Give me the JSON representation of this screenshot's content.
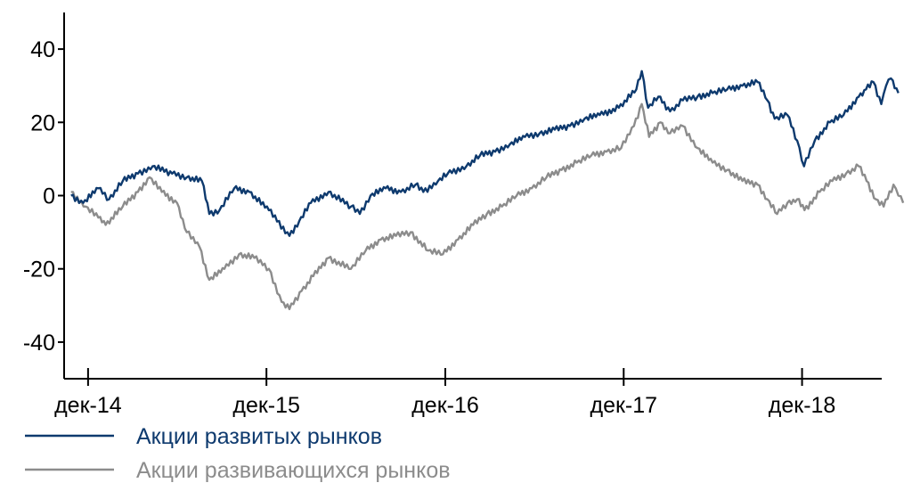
{
  "chart_data": {
    "type": "line",
    "title": "",
    "xlabel": "",
    "ylabel": "",
    "x_ticks": [
      "дек-14",
      "дек-15",
      "дек-16",
      "дек-17",
      "дек-18"
    ],
    "x_range": [
      "2014-11",
      "2019-06"
    ],
    "ylim": [
      -50,
      50
    ],
    "y_ticks": [
      40,
      20,
      0,
      -20,
      -40
    ],
    "grid": false,
    "legend_position": "bottom-left",
    "series": [
      {
        "name": "Акции развитых рынков",
        "color": "#0e3a6e",
        "points": [
          [
            "2014-11-15",
            0
          ],
          [
            "2014-12-10",
            -2
          ],
          [
            "2015-01-10",
            2
          ],
          [
            "2015-02-01",
            -1
          ],
          [
            "2015-03-01",
            4
          ],
          [
            "2015-04-01",
            6
          ],
          [
            "2015-05-01",
            8
          ],
          [
            "2015-06-10",
            6
          ],
          [
            "2015-07-10",
            5
          ],
          [
            "2015-08-10",
            4
          ],
          [
            "2015-08-25",
            -5
          ],
          [
            "2015-09-15",
            -4
          ],
          [
            "2015-10-15",
            2
          ],
          [
            "2015-11-15",
            1
          ],
          [
            "2015-12-25",
            -4
          ],
          [
            "2016-02-05",
            -11
          ],
          [
            "2016-02-25",
            -7
          ],
          [
            "2016-03-20",
            -2
          ],
          [
            "2016-04-25",
            1
          ],
          [
            "2016-06-10",
            -3
          ],
          [
            "2016-06-28",
            -5
          ],
          [
            "2016-07-20",
            0
          ],
          [
            "2016-08-20",
            2
          ],
          [
            "2016-09-20",
            1
          ],
          [
            "2016-10-20",
            3
          ],
          [
            "2016-11-05",
            1
          ],
          [
            "2016-12-05",
            4
          ],
          [
            "2016-12-25",
            6
          ],
          [
            "2017-02-01",
            8
          ],
          [
            "2017-03-01",
            11
          ],
          [
            "2017-04-01",
            12
          ],
          [
            "2017-05-01",
            14
          ],
          [
            "2017-06-01",
            16
          ],
          [
            "2017-07-01",
            17
          ],
          [
            "2017-08-01",
            18
          ],
          [
            "2017-09-01",
            19
          ],
          [
            "2017-10-01",
            21
          ],
          [
            "2017-11-01",
            22
          ],
          [
            "2017-12-10",
            24
          ],
          [
            "2018-01-15",
            29
          ],
          [
            "2018-01-26",
            34
          ],
          [
            "2018-02-08",
            24
          ],
          [
            "2018-03-01",
            27
          ],
          [
            "2018-03-25",
            23
          ],
          [
            "2018-04-20",
            26
          ],
          [
            "2018-05-20",
            27
          ],
          [
            "2018-06-20",
            28
          ],
          [
            "2018-07-20",
            29
          ],
          [
            "2018-08-20",
            30
          ],
          [
            "2018-09-20",
            31
          ],
          [
            "2018-10-10",
            26
          ],
          [
            "2018-10-25",
            21
          ],
          [
            "2018-11-20",
            22
          ],
          [
            "2018-12-10",
            15
          ],
          [
            "2018-12-24",
            8
          ],
          [
            "2019-01-15",
            15
          ],
          [
            "2019-02-15",
            20
          ],
          [
            "2019-03-15",
            22
          ],
          [
            "2019-04-15",
            27
          ],
          [
            "2019-04-30",
            29
          ],
          [
            "2019-05-15",
            31
          ],
          [
            "2019-05-31",
            25
          ],
          [
            "2019-06-10",
            30
          ],
          [
            "2019-06-20",
            32
          ],
          [
            "2019-07-05",
            28
          ]
        ]
      },
      {
        "name": "Акции развивающихся рынков",
        "color": "#8c8c8c",
        "points": [
          [
            "2014-11-15",
            1
          ],
          [
            "2014-12-15",
            -3
          ],
          [
            "2015-01-10",
            -6
          ],
          [
            "2015-01-25",
            -8
          ],
          [
            "2015-03-01",
            -3
          ],
          [
            "2015-04-01",
            1
          ],
          [
            "2015-04-25",
            5
          ],
          [
            "2015-05-20",
            1
          ],
          [
            "2015-06-20",
            -2
          ],
          [
            "2015-07-10",
            -10
          ],
          [
            "2015-08-05",
            -14
          ],
          [
            "2015-08-25",
            -23
          ],
          [
            "2015-09-25",
            -20
          ],
          [
            "2015-10-25",
            -16
          ],
          [
            "2015-11-25",
            -17
          ],
          [
            "2015-12-25",
            -20
          ],
          [
            "2016-01-20",
            -29
          ],
          [
            "2016-02-05",
            -31
          ],
          [
            "2016-03-01",
            -26
          ],
          [
            "2016-03-25",
            -22
          ],
          [
            "2016-04-25",
            -17
          ],
          [
            "2016-06-10",
            -20
          ],
          [
            "2016-07-10",
            -15
          ],
          [
            "2016-08-10",
            -12
          ],
          [
            "2016-09-10",
            -11
          ],
          [
            "2016-10-10",
            -10
          ],
          [
            "2016-11-15",
            -15
          ],
          [
            "2016-12-15",
            -16
          ],
          [
            "2017-01-15",
            -12
          ],
          [
            "2017-02-15",
            -8
          ],
          [
            "2017-03-15",
            -5
          ],
          [
            "2017-04-15",
            -3
          ],
          [
            "2017-05-15",
            0
          ],
          [
            "2017-06-15",
            2
          ],
          [
            "2017-07-15",
            5
          ],
          [
            "2017-08-15",
            7
          ],
          [
            "2017-09-15",
            9
          ],
          [
            "2017-10-15",
            11
          ],
          [
            "2017-11-15",
            12
          ],
          [
            "2017-12-15",
            13
          ],
          [
            "2018-01-10",
            19
          ],
          [
            "2018-01-26",
            25
          ],
          [
            "2018-02-10",
            16
          ],
          [
            "2018-03-05",
            20
          ],
          [
            "2018-03-25",
            17
          ],
          [
            "2018-04-20",
            19
          ],
          [
            "2018-05-20",
            13
          ],
          [
            "2018-06-20",
            9
          ],
          [
            "2018-07-20",
            7
          ],
          [
            "2018-08-20",
            4
          ],
          [
            "2018-09-20",
            3
          ],
          [
            "2018-10-10",
            -1
          ],
          [
            "2018-10-30",
            -5
          ],
          [
            "2018-11-20",
            -2
          ],
          [
            "2018-12-10",
            -1
          ],
          [
            "2018-12-25",
            -4
          ],
          [
            "2019-01-25",
            1
          ],
          [
            "2019-02-20",
            4
          ],
          [
            "2019-03-20",
            6
          ],
          [
            "2019-04-15",
            8
          ],
          [
            "2019-05-01",
            4
          ],
          [
            "2019-05-20",
            -1
          ],
          [
            "2019-06-05",
            -3
          ],
          [
            "2019-06-25",
            3
          ],
          [
            "2019-07-05",
            0
          ],
          [
            "2019-07-15",
            -2
          ]
        ]
      }
    ]
  }
}
